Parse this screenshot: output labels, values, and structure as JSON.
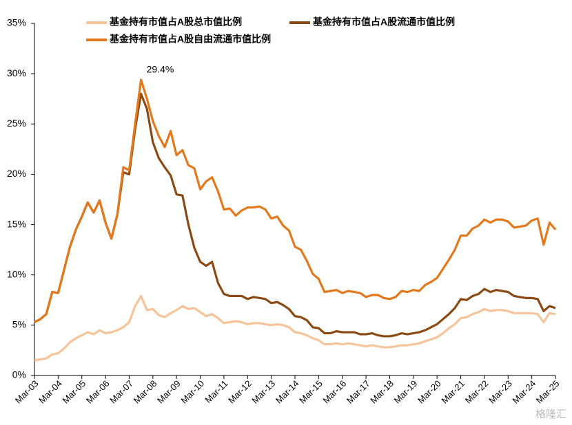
{
  "chart_data": {
    "type": "line",
    "categories": [
      "Mar-03",
      null,
      null,
      null,
      "Mar-04",
      null,
      null,
      null,
      "Mar-05",
      null,
      null,
      null,
      "Mar-06",
      null,
      null,
      null,
      "Mar-07",
      null,
      null,
      null,
      "Mar-08",
      null,
      null,
      null,
      "Mar-09",
      null,
      null,
      null,
      "Mar-10",
      null,
      null,
      null,
      "Mar-11",
      null,
      null,
      null,
      "Mar-12",
      null,
      null,
      null,
      "Mar-13",
      null,
      null,
      null,
      "Mar-14",
      null,
      null,
      null,
      "Mar-15",
      null,
      null,
      null,
      "Mar-16",
      null,
      null,
      null,
      "Mar-17",
      null,
      null,
      null,
      "Mar-18",
      null,
      null,
      null,
      "Mar-19",
      null,
      null,
      null,
      "Mar-20",
      null,
      null,
      null,
      "Mar-21",
      null,
      null,
      null,
      "Mar-22",
      null,
      null,
      null,
      "Mar-23",
      null,
      null,
      null,
      "Mar-24",
      null,
      null,
      null,
      "Mar-25"
    ],
    "series": [
      {
        "name": "基金持有市值占A股总市值比例",
        "color": "#f7c49a",
        "values": [
          1.5,
          1.6,
          1.7,
          2.1,
          2.2,
          2.7,
          3.3,
          3.7,
          4.0,
          4.3,
          4.1,
          4.5,
          4.2,
          4.3,
          4.5,
          4.8,
          5.3,
          6.9,
          7.9,
          6.5,
          6.6,
          6.0,
          5.8,
          6.2,
          6.5,
          6.9,
          6.6,
          6.7,
          6.3,
          5.9,
          6.1,
          5.7,
          5.2,
          5.3,
          5.4,
          5.3,
          5.1,
          5.2,
          5.2,
          5.1,
          5.0,
          5.1,
          5.0,
          4.8,
          4.3,
          4.2,
          4.0,
          3.7,
          3.5,
          3.1,
          3.1,
          3.2,
          3.1,
          3.2,
          3.1,
          3.0,
          2.9,
          3.0,
          2.9,
          2.8,
          2.8,
          2.9,
          3.0,
          3.0,
          3.1,
          3.2,
          3.4,
          3.6,
          3.8,
          4.2,
          4.7,
          5.1,
          5.7,
          5.8,
          6.1,
          6.3,
          6.6,
          6.4,
          6.5,
          6.5,
          6.4,
          6.2,
          6.2,
          6.2,
          6.2,
          6.1,
          5.3,
          6.2,
          6.1
        ]
      },
      {
        "name": "基金持有市值占A股流通市值比例",
        "color": "#8b4a14",
        "values": [
          5.3,
          5.6,
          6.1,
          8.3,
          8.2,
          10.5,
          12.8,
          14.5,
          15.8,
          17.2,
          16.2,
          17.4,
          15.2,
          13.6,
          16.0,
          20.2,
          20.0,
          24.5,
          28.0,
          26.5,
          23.2,
          21.6,
          20.7,
          19.9,
          18.0,
          17.9,
          15.0,
          12.7,
          11.3,
          10.9,
          11.3,
          9.2,
          8.1,
          7.9,
          7.9,
          7.9,
          7.6,
          7.8,
          7.7,
          7.6,
          7.2,
          7.3,
          7.0,
          6.6,
          5.9,
          5.8,
          5.5,
          4.8,
          4.7,
          4.2,
          4.2,
          4.4,
          4.3,
          4.3,
          4.3,
          4.1,
          4.1,
          4.2,
          4.0,
          3.9,
          3.9,
          4.0,
          4.2,
          4.1,
          4.2,
          4.3,
          4.5,
          4.8,
          5.1,
          5.6,
          6.1,
          6.7,
          7.6,
          7.5,
          7.9,
          8.1,
          8.6,
          8.3,
          8.5,
          8.4,
          8.3,
          7.9,
          7.8,
          7.7,
          7.7,
          7.6,
          6.4,
          6.9,
          6.7
        ]
      },
      {
        "name": "基金持有市值占A股自由流通市值比例",
        "color": "#e3791c",
        "values": [
          5.3,
          5.6,
          6.1,
          8.3,
          8.2,
          10.5,
          12.8,
          14.5,
          15.8,
          17.2,
          16.2,
          17.4,
          15.2,
          13.6,
          16.0,
          20.7,
          20.4,
          25.0,
          29.4,
          27.5,
          25.3,
          23.8,
          22.7,
          24.3,
          21.9,
          22.4,
          20.9,
          20.6,
          18.5,
          19.3,
          19.7,
          18.3,
          16.5,
          16.6,
          15.9,
          16.4,
          16.7,
          16.7,
          16.8,
          16.5,
          15.6,
          15.8,
          14.9,
          14.4,
          12.8,
          12.5,
          11.4,
          10.1,
          9.6,
          8.3,
          8.4,
          8.5,
          8.2,
          8.4,
          8.3,
          8.2,
          7.8,
          8.0,
          8.0,
          7.7,
          7.6,
          7.8,
          8.4,
          8.3,
          8.5,
          8.4,
          9.0,
          9.3,
          9.7,
          10.6,
          11.5,
          12.5,
          13.9,
          13.9,
          14.6,
          14.9,
          15.5,
          15.2,
          15.5,
          15.5,
          15.3,
          14.7,
          14.8,
          14.9,
          15.4,
          15.6,
          13.0,
          15.2,
          14.5
        ]
      }
    ],
    "annotations": [
      {
        "text": "29.4%"
      }
    ],
    "ylim": [
      0,
      35
    ],
    "yticks": [
      {
        "value": 0,
        "label": "0%"
      },
      {
        "value": 5,
        "label": "5%"
      },
      {
        "value": 10,
        "label": "10%"
      },
      {
        "value": 15,
        "label": "15%"
      },
      {
        "value": 20,
        "label": "20%"
      },
      {
        "value": 25,
        "label": "25%"
      },
      {
        "value": 30,
        "label": "30%"
      },
      {
        "value": 35,
        "label": "35%"
      }
    ],
    "grid": false,
    "legend": "top",
    "watermark": "格隆汇"
  }
}
